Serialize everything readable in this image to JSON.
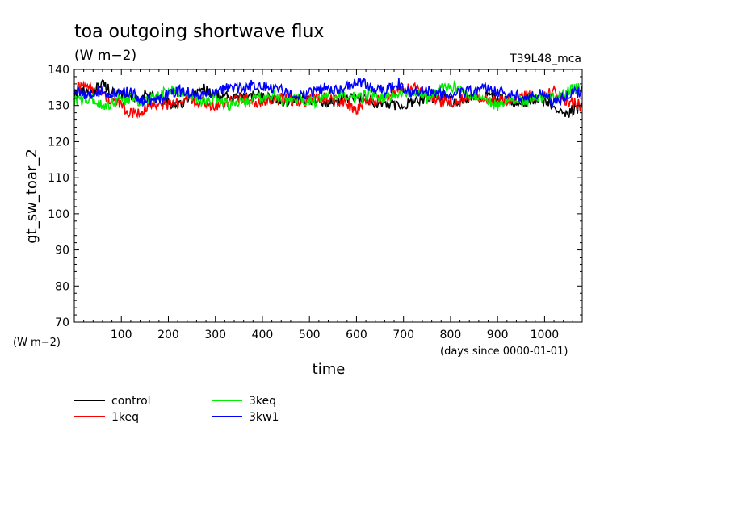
{
  "chart_data": {
    "type": "line",
    "title": "toa outgoing shortwave flux",
    "units_label": "(W m−2)",
    "experiment": "T39L48_mca",
    "xlabel": "time",
    "xunits": "(days since 0000-01-01)",
    "ylabel": "gt_sw_toar_2",
    "yunits": "(W m−2)",
    "xlim": [
      0,
      1080
    ],
    "ylim": [
      70,
      140
    ],
    "x_ticks": [
      100,
      200,
      300,
      400,
      500,
      600,
      700,
      800,
      900,
      1000
    ],
    "y_ticks": [
      70,
      80,
      90,
      100,
      110,
      120,
      130,
      140
    ],
    "legend_position": "bottom-left",
    "grid": false,
    "series": [
      {
        "name": "control",
        "color": "#000000",
        "x": [
          0,
          30,
          60,
          90,
          120,
          150,
          180,
          210,
          240,
          270,
          300,
          330,
          360,
          390,
          420,
          450,
          480,
          510,
          540,
          570,
          600,
          630,
          660,
          690,
          720,
          750,
          780,
          810,
          840,
          870,
          900,
          930,
          960,
          990,
          1020,
          1050,
          1080
        ],
        "values": [
          133,
          134,
          136,
          133,
          132,
          133,
          132,
          130,
          131,
          135,
          133,
          132,
          132,
          133,
          132,
          131,
          132,
          131,
          131,
          132,
          132,
          131,
          130,
          130,
          131,
          132,
          132,
          131,
          132,
          133,
          132,
          131,
          131,
          132,
          130,
          128,
          130
        ]
      },
      {
        "name": "1keq",
        "color": "#ff0000",
        "x": [
          0,
          30,
          60,
          90,
          120,
          150,
          180,
          210,
          240,
          270,
          300,
          330,
          360,
          390,
          420,
          450,
          480,
          510,
          540,
          570,
          600,
          630,
          660,
          690,
          720,
          750,
          780,
          810,
          840,
          870,
          900,
          930,
          960,
          990,
          1020,
          1050,
          1080
        ],
        "values": [
          135,
          135,
          133,
          131,
          128,
          129,
          131,
          130,
          132,
          131,
          130,
          131,
          132,
          131,
          132,
          132,
          131,
          132,
          132,
          131,
          129,
          131,
          132,
          134,
          135,
          133,
          131,
          131,
          132,
          132,
          131,
          132,
          133,
          132,
          134,
          131,
          130
        ]
      },
      {
        "name": "3keq",
        "color": "#00ee00",
        "x": [
          0,
          30,
          60,
          90,
          120,
          150,
          180,
          210,
          240,
          270,
          300,
          330,
          360,
          390,
          420,
          450,
          480,
          510,
          540,
          570,
          600,
          630,
          660,
          690,
          720,
          750,
          780,
          810,
          840,
          870,
          900,
          930,
          960,
          990,
          1020,
          1050,
          1080
        ],
        "values": [
          131,
          132,
          130,
          131,
          132,
          131,
          133,
          134,
          133,
          131,
          132,
          130,
          131,
          132,
          133,
          131,
          132,
          131,
          133,
          133,
          132,
          133,
          132,
          133,
          134,
          132,
          135,
          135,
          133,
          132,
          130,
          131,
          131,
          132,
          132,
          134,
          135
        ]
      },
      {
        "name": "3kw1",
        "color": "#0000ff",
        "x": [
          0,
          30,
          60,
          90,
          120,
          150,
          180,
          210,
          240,
          270,
          300,
          330,
          360,
          390,
          420,
          450,
          480,
          510,
          540,
          570,
          600,
          630,
          660,
          690,
          720,
          750,
          780,
          810,
          840,
          870,
          900,
          930,
          960,
          990,
          1020,
          1050,
          1080
        ],
        "values": [
          134,
          133,
          134,
          133,
          134,
          131,
          132,
          134,
          134,
          133,
          134,
          135,
          135,
          136,
          135,
          134,
          133,
          134,
          135,
          134,
          137,
          135,
          134,
          136,
          133,
          134,
          133,
          133,
          134,
          135,
          134,
          133,
          132,
          133,
          131,
          133,
          134
        ]
      }
    ]
  }
}
